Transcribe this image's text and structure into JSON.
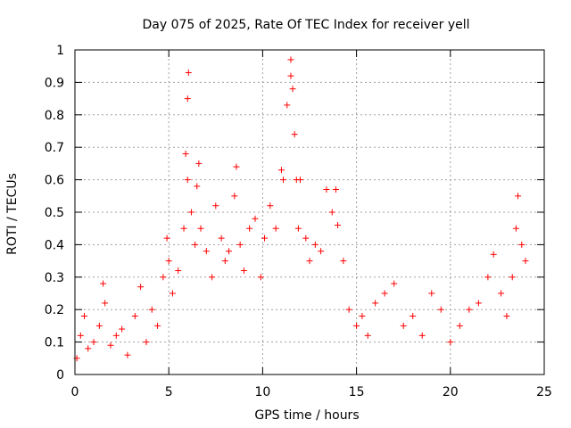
{
  "chart_data": {
    "type": "scatter",
    "title": "Day 075 of 2025, Rate Of TEC Index for receiver yell",
    "xlabel": "GPS time / hours",
    "ylabel": "ROTI / TECUs",
    "xlim": [
      0,
      25
    ],
    "ylim": [
      0,
      1
    ],
    "xticks": [
      0,
      5,
      10,
      15,
      20,
      25
    ],
    "yticks": [
      0,
      0.1,
      0.2,
      0.3,
      0.4,
      0.5,
      0.6,
      0.7,
      0.8,
      0.9,
      1
    ],
    "xtick_labels": [
      "0",
      "5",
      "10",
      "15",
      "20",
      "25"
    ],
    "ytick_labels": [
      "0",
      "0.1",
      "0.2",
      "0.3",
      "0.4",
      "0.5",
      "0.6",
      "0.7",
      "0.8",
      "0.9",
      "1"
    ],
    "grid": true,
    "marker": "+",
    "series": [
      {
        "name": "ROTI",
        "color": "#ff0000",
        "points": [
          [
            0.1,
            0.05
          ],
          [
            0.3,
            0.12
          ],
          [
            0.5,
            0.18
          ],
          [
            0.7,
            0.08
          ],
          [
            1.0,
            0.1
          ],
          [
            1.3,
            0.15
          ],
          [
            1.5,
            0.28
          ],
          [
            1.6,
            0.22
          ],
          [
            1.9,
            0.09
          ],
          [
            2.2,
            0.12
          ],
          [
            2.5,
            0.14
          ],
          [
            2.8,
            0.06
          ],
          [
            3.2,
            0.18
          ],
          [
            3.5,
            0.27
          ],
          [
            3.8,
            0.1
          ],
          [
            4.1,
            0.2
          ],
          [
            4.4,
            0.15
          ],
          [
            4.7,
            0.3
          ],
          [
            4.9,
            0.42
          ],
          [
            5.0,
            0.35
          ],
          [
            5.2,
            0.25
          ],
          [
            5.5,
            0.32
          ],
          [
            5.8,
            0.45
          ],
          [
            5.9,
            0.68
          ],
          [
            6.0,
            0.6
          ],
          [
            6.0,
            0.85
          ],
          [
            6.05,
            0.93
          ],
          [
            6.2,
            0.5
          ],
          [
            6.4,
            0.4
          ],
          [
            6.5,
            0.58
          ],
          [
            6.6,
            0.65
          ],
          [
            6.7,
            0.45
          ],
          [
            7.0,
            0.38
          ],
          [
            7.3,
            0.3
          ],
          [
            7.5,
            0.52
          ],
          [
            7.8,
            0.42
          ],
          [
            8.0,
            0.35
          ],
          [
            8.2,
            0.38
          ],
          [
            8.5,
            0.55
          ],
          [
            8.6,
            0.64
          ],
          [
            8.8,
            0.4
          ],
          [
            9.0,
            0.32
          ],
          [
            9.3,
            0.45
          ],
          [
            9.6,
            0.48
          ],
          [
            9.9,
            0.3
          ],
          [
            10.1,
            0.42
          ],
          [
            10.4,
            0.52
          ],
          [
            10.7,
            0.45
          ],
          [
            11.0,
            0.63
          ],
          [
            11.1,
            0.6
          ],
          [
            11.3,
            0.83
          ],
          [
            11.5,
            0.92
          ],
          [
            11.5,
            0.97
          ],
          [
            11.6,
            0.88
          ],
          [
            11.7,
            0.74
          ],
          [
            11.8,
            0.6
          ],
          [
            11.9,
            0.45
          ],
          [
            12.0,
            0.6
          ],
          [
            12.3,
            0.42
          ],
          [
            12.5,
            0.35
          ],
          [
            12.8,
            0.4
          ],
          [
            13.1,
            0.38
          ],
          [
            13.4,
            0.57
          ],
          [
            13.7,
            0.5
          ],
          [
            13.9,
            0.57
          ],
          [
            14.0,
            0.46
          ],
          [
            14.3,
            0.35
          ],
          [
            14.6,
            0.2
          ],
          [
            15.0,
            0.15
          ],
          [
            15.3,
            0.18
          ],
          [
            15.6,
            0.12
          ],
          [
            16.0,
            0.22
          ],
          [
            16.5,
            0.25
          ],
          [
            17.0,
            0.28
          ],
          [
            17.5,
            0.15
          ],
          [
            18.0,
            0.18
          ],
          [
            18.5,
            0.12
          ],
          [
            19.0,
            0.25
          ],
          [
            19.5,
            0.2
          ],
          [
            20.0,
            0.1
          ],
          [
            20.5,
            0.15
          ],
          [
            21.0,
            0.2
          ],
          [
            21.5,
            0.22
          ],
          [
            22.0,
            0.3
          ],
          [
            22.3,
            0.37
          ],
          [
            22.7,
            0.25
          ],
          [
            23.0,
            0.18
          ],
          [
            23.3,
            0.3
          ],
          [
            23.5,
            0.45
          ],
          [
            23.6,
            0.55
          ],
          [
            23.8,
            0.4
          ],
          [
            24.0,
            0.35
          ]
        ]
      }
    ]
  }
}
